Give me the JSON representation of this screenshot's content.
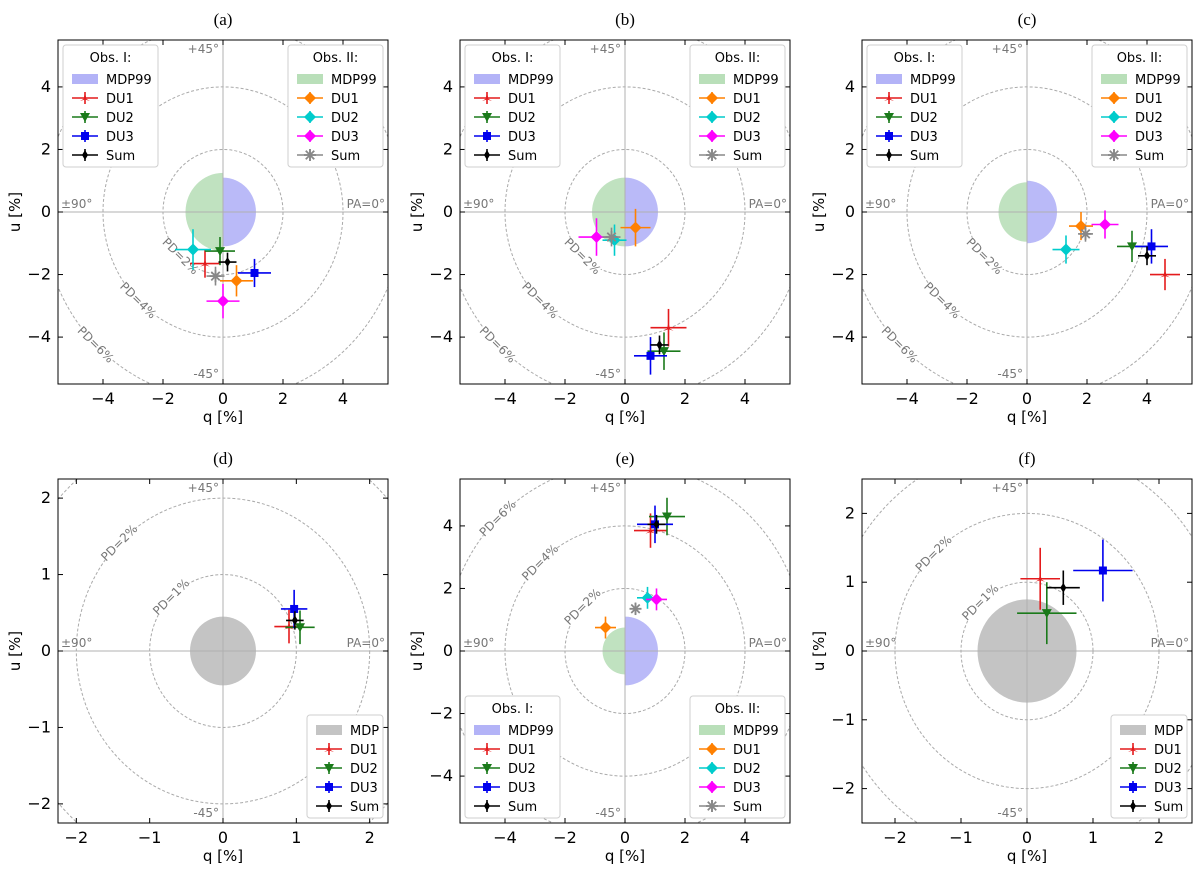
{
  "colors": {
    "DU1": "#e41a1c",
    "DU2": "#1a7a1a",
    "DU3": "#0000ee",
    "Sum": "#000000",
    "DU1_II": "#ff8000",
    "DU2_II": "#00cccc",
    "DU3_II": "#ff00ff",
    "Sum_II": "#888888",
    "mdp_I": "#b3b3f7",
    "mdp_II": "#b9dfb9",
    "mdp": "#c4c4c4"
  },
  "chart_data": [
    {
      "title": "(a)",
      "type": "scatter",
      "xlabel": "q [%]",
      "ylabel": "u [%]",
      "xlim": [
        -5.5,
        5.5
      ],
      "ylim": [
        -5.5,
        5.5
      ],
      "xticks": [
        -4,
        -2,
        0,
        2,
        4
      ],
      "yticks": [
        -4,
        -2,
        0,
        2,
        4
      ],
      "pd_circles": [
        2,
        4,
        6
      ],
      "pd_labels": [
        "PD=2%",
        "PD=4%",
        "PD=6%"
      ],
      "angles": {
        "top": "+45°",
        "bottom": "-45°",
        "left": "±90°",
        "right": "PA=0°"
      },
      "mdp": {
        "mode": "split",
        "obsI": 1.1,
        "obsII": 1.25
      },
      "legends": [
        {
          "loc": "upper left",
          "title": "Obs. I:",
          "entries": [
            "MDP99",
            "DU1",
            "DU2",
            "DU3",
            "Sum"
          ]
        },
        {
          "loc": "upper right",
          "title": "Obs. II:",
          "entries": [
            "MDP99",
            "DU1",
            "DU2",
            "DU3",
            "Sum"
          ]
        }
      ],
      "series": [
        {
          "name": "DU1",
          "obs": "I",
          "q": -0.6,
          "u": -1.65,
          "qerr": 0.5,
          "uerr": 0.45
        },
        {
          "name": "DU2",
          "obs": "I",
          "q": -0.1,
          "u": -1.25,
          "qerr": 0.5,
          "uerr": 0.45
        },
        {
          "name": "DU3",
          "obs": "I",
          "q": 1.05,
          "u": -1.95,
          "qerr": 0.55,
          "uerr": 0.45
        },
        {
          "name": "Sum",
          "obs": "I",
          "q": 0.15,
          "u": -1.6,
          "qerr": 0.3,
          "uerr": 0.3
        },
        {
          "name": "DU1",
          "obs": "II",
          "q": 0.45,
          "u": -2.2,
          "qerr": 0.55,
          "uerr": 0.5
        },
        {
          "name": "DU2",
          "obs": "II",
          "q": -1.0,
          "u": -1.2,
          "qerr": 0.6,
          "uerr": 0.65
        },
        {
          "name": "DU3",
          "obs": "II",
          "q": 0.0,
          "u": -2.85,
          "qerr": 0.55,
          "uerr": 0.55
        },
        {
          "name": "Sum",
          "obs": "II",
          "q": -0.25,
          "u": -2.05,
          "qerr": 0.3,
          "uerr": 0.3
        }
      ]
    },
    {
      "title": "(b)",
      "type": "scatter",
      "xlabel": "q [%]",
      "ylabel": "u [%]",
      "xlim": [
        -5.5,
        5.5
      ],
      "ylim": [
        -5.5,
        5.5
      ],
      "xticks": [
        -4,
        -2,
        0,
        2,
        4
      ],
      "yticks": [
        -4,
        -2,
        0,
        2,
        4
      ],
      "pd_circles": [
        2,
        4,
        6
      ],
      "pd_labels": [
        "PD=2%",
        "PD=4%",
        "PD=6%"
      ],
      "angles": {
        "top": "+45°",
        "bottom": "-45°",
        "left": "±90°",
        "right": "PA=0°"
      },
      "mdp": {
        "mode": "split",
        "obsI": 1.1,
        "obsII": 1.1
      },
      "legends": [
        {
          "loc": "upper left",
          "title": "Obs. I:",
          "entries": [
            "MDP99",
            "DU1",
            "DU2",
            "DU3",
            "Sum"
          ]
        },
        {
          "loc": "upper right",
          "title": "Obs. II:",
          "entries": [
            "MDP99",
            "DU1",
            "DU2",
            "DU3",
            "Sum"
          ]
        }
      ],
      "series": [
        {
          "name": "DU1",
          "obs": "I",
          "q": 1.45,
          "u": -3.7,
          "qerr": 0.6,
          "uerr": 0.6
        },
        {
          "name": "DU2",
          "obs": "I",
          "q": 1.3,
          "u": -4.45,
          "qerr": 0.55,
          "uerr": 0.6
        },
        {
          "name": "DU3",
          "obs": "I",
          "q": 0.85,
          "u": -4.6,
          "qerr": 0.55,
          "uerr": 0.6
        },
        {
          "name": "Sum",
          "obs": "I",
          "q": 1.15,
          "u": -4.25,
          "qerr": 0.3,
          "uerr": 0.3
        },
        {
          "name": "DU1",
          "obs": "II",
          "q": 0.35,
          "u": -0.5,
          "qerr": 0.5,
          "uerr": 0.6
        },
        {
          "name": "DU2",
          "obs": "II",
          "q": -0.35,
          "u": -0.9,
          "qerr": 0.4,
          "uerr": 0.5
        },
        {
          "name": "DU3",
          "obs": "II",
          "q": -0.95,
          "u": -0.8,
          "qerr": 0.6,
          "uerr": 0.6
        },
        {
          "name": "Sum",
          "obs": "II",
          "q": -0.45,
          "u": -0.8,
          "qerr": 0.3,
          "uerr": 0.3
        }
      ]
    },
    {
      "title": "(c)",
      "type": "scatter",
      "xlabel": "q [%]",
      "ylabel": "u [%]",
      "xlim": [
        -5.5,
        5.5
      ],
      "ylim": [
        -5.5,
        5.5
      ],
      "xticks": [
        -4,
        -2,
        0,
        2,
        4
      ],
      "yticks": [
        -4,
        -2,
        0,
        2,
        4
      ],
      "pd_circles": [
        2,
        4,
        6
      ],
      "pd_labels": [
        "PD=2%",
        "PD=4%",
        "PD=6%"
      ],
      "angles": {
        "top": "+45°",
        "bottom": "-45°",
        "left": "±90°",
        "right": "PA=0°"
      },
      "mdp": {
        "mode": "split",
        "obsI": 1.0,
        "obsII": 0.95
      },
      "legends": [
        {
          "loc": "upper left",
          "title": "Obs. I:",
          "entries": [
            "MDP99",
            "DU1",
            "DU2",
            "DU3",
            "Sum"
          ]
        },
        {
          "loc": "upper right",
          "title": "Obs. II:",
          "entries": [
            "MDP99",
            "DU1",
            "DU2",
            "DU3",
            "Sum"
          ]
        }
      ],
      "series": [
        {
          "name": "DU1",
          "obs": "I",
          "q": 4.6,
          "u": -2.0,
          "qerr": 0.5,
          "uerr": 0.5
        },
        {
          "name": "DU2",
          "obs": "I",
          "q": 3.5,
          "u": -1.1,
          "qerr": 0.5,
          "uerr": 0.5
        },
        {
          "name": "DU3",
          "obs": "I",
          "q": 4.15,
          "u": -1.1,
          "qerr": 0.55,
          "uerr": 0.55
        },
        {
          "name": "Sum",
          "obs": "I",
          "q": 4.0,
          "u": -1.4,
          "qerr": 0.3,
          "uerr": 0.3
        },
        {
          "name": "DU1",
          "obs": "II",
          "q": 1.8,
          "u": -0.45,
          "qerr": 0.4,
          "uerr": 0.45
        },
        {
          "name": "DU2",
          "obs": "II",
          "q": 1.3,
          "u": -1.2,
          "qerr": 0.45,
          "uerr": 0.45
        },
        {
          "name": "DU3",
          "obs": "II",
          "q": 2.6,
          "u": -0.4,
          "qerr": 0.45,
          "uerr": 0.45
        },
        {
          "name": "Sum",
          "obs": "II",
          "q": 1.95,
          "u": -0.7,
          "qerr": 0.25,
          "uerr": 0.25
        }
      ]
    },
    {
      "title": "(d)",
      "type": "scatter",
      "xlabel": "q [%]",
      "ylabel": "u [%]",
      "xlim": [
        -2.25,
        2.25
      ],
      "ylim": [
        -2.25,
        2.25
      ],
      "xticks": [
        -2,
        -1,
        0,
        1,
        2
      ],
      "yticks": [
        -2,
        -1,
        0,
        1,
        2
      ],
      "pd_circles": [
        1,
        2,
        3
      ],
      "pd_labels": [
        "PD=1%",
        "PD=2%"
      ],
      "angles": {
        "top": "+45°",
        "bottom": "-45°",
        "left": "±90°",
        "right": "PA=0°"
      },
      "mdp": {
        "mode": "full",
        "radius": 0.45
      },
      "legends": [
        {
          "loc": "lower right",
          "title": "",
          "entries": [
            "MDP",
            "DU1",
            "DU2",
            "DU3",
            "Sum"
          ]
        }
      ],
      "series": [
        {
          "name": "DU1",
          "obs": "I",
          "q": 0.9,
          "u": 0.32,
          "qerr": 0.2,
          "uerr": 0.22
        },
        {
          "name": "DU2",
          "obs": "I",
          "q": 1.05,
          "u": 0.31,
          "qerr": 0.2,
          "uerr": 0.22
        },
        {
          "name": "DU3",
          "obs": "I",
          "q": 0.97,
          "u": 0.55,
          "qerr": 0.18,
          "uerr": 0.25
        },
        {
          "name": "Sum",
          "obs": "I",
          "q": 0.98,
          "u": 0.4,
          "qerr": 0.12,
          "uerr": 0.12
        }
      ]
    },
    {
      "title": "(e)",
      "type": "scatter",
      "xlabel": "q [%]",
      "ylabel": "u [%]",
      "xlim": [
        -5.5,
        5.5
      ],
      "ylim": [
        -5.5,
        5.5
      ],
      "xticks": [
        -4,
        -2,
        0,
        2,
        4
      ],
      "yticks": [
        -4,
        -2,
        0,
        2,
        4
      ],
      "pd_circles": [
        2,
        4,
        6
      ],
      "pd_labels": [
        "PD=2%",
        "PD=4%",
        "PD=6%"
      ],
      "angles": {
        "top": "+45°",
        "bottom": "-45°",
        "left": "±90°",
        "right": "PA=0°"
      },
      "mdp": {
        "mode": "split",
        "obsI": 1.1,
        "obsII": 0.75
      },
      "legends": [
        {
          "loc": "lower left",
          "title": "Obs. I:",
          "entries": [
            "MDP99",
            "DU1",
            "DU2",
            "DU3",
            "Sum"
          ]
        },
        {
          "loc": "lower right",
          "title": "Obs. II:",
          "entries": [
            "MDP99",
            "DU1",
            "DU2",
            "DU3",
            "Sum"
          ]
        }
      ],
      "series": [
        {
          "name": "DU1",
          "obs": "I",
          "q": 0.85,
          "u": 3.85,
          "qerr": 0.55,
          "uerr": 0.55
        },
        {
          "name": "DU2",
          "obs": "I",
          "q": 1.4,
          "u": 4.3,
          "qerr": 0.6,
          "uerr": 0.6
        },
        {
          "name": "DU3",
          "obs": "I",
          "q": 1.0,
          "u": 4.05,
          "qerr": 0.6,
          "uerr": 0.6
        },
        {
          "name": "Sum",
          "obs": "I",
          "q": 1.05,
          "u": 4.05,
          "qerr": 0.3,
          "uerr": 0.3
        },
        {
          "name": "DU1",
          "obs": "II",
          "q": -0.65,
          "u": 0.75,
          "qerr": 0.35,
          "uerr": 0.35
        },
        {
          "name": "DU2",
          "obs": "II",
          "q": 0.75,
          "u": 1.7,
          "qerr": 0.35,
          "uerr": 0.35
        },
        {
          "name": "DU3",
          "obs": "II",
          "q": 1.05,
          "u": 1.65,
          "qerr": 0.35,
          "uerr": 0.35
        },
        {
          "name": "Sum",
          "obs": "II",
          "q": 0.35,
          "u": 1.35,
          "qerr": 0.2,
          "uerr": 0.2
        }
      ]
    },
    {
      "title": "(f)",
      "type": "scatter",
      "xlabel": "q [%]",
      "ylabel": "u [%]",
      "xlim": [
        -2.5,
        2.5
      ],
      "ylim": [
        -2.5,
        2.5
      ],
      "xticks": [
        -2,
        -1,
        0,
        1,
        2
      ],
      "yticks": [
        -2,
        -1,
        0,
        1,
        2
      ],
      "pd_circles": [
        1,
        2,
        3
      ],
      "pd_labels": [
        "PD=1%",
        "PD=2%"
      ],
      "angles": {
        "top": "+45°",
        "bottom": "-45°",
        "left": "±90°",
        "right": "PA=0°"
      },
      "mdp": {
        "mode": "full",
        "radius": 0.75
      },
      "legends": [
        {
          "loc": "lower right",
          "title": "",
          "entries": [
            "MDP",
            "DU1",
            "DU2",
            "DU3",
            "Sum"
          ]
        }
      ],
      "series": [
        {
          "name": "DU1",
          "obs": "I",
          "q": 0.2,
          "u": 1.05,
          "qerr": 0.3,
          "uerr": 0.45
        },
        {
          "name": "DU2",
          "obs": "I",
          "q": 0.3,
          "u": 0.55,
          "qerr": 0.45,
          "uerr": 0.45
        },
        {
          "name": "DU3",
          "obs": "I",
          "q": 1.15,
          "u": 1.17,
          "qerr": 0.45,
          "uerr": 0.45
        },
        {
          "name": "Sum",
          "obs": "I",
          "q": 0.55,
          "u": 0.92,
          "qerr": 0.25,
          "uerr": 0.25
        }
      ]
    }
  ]
}
